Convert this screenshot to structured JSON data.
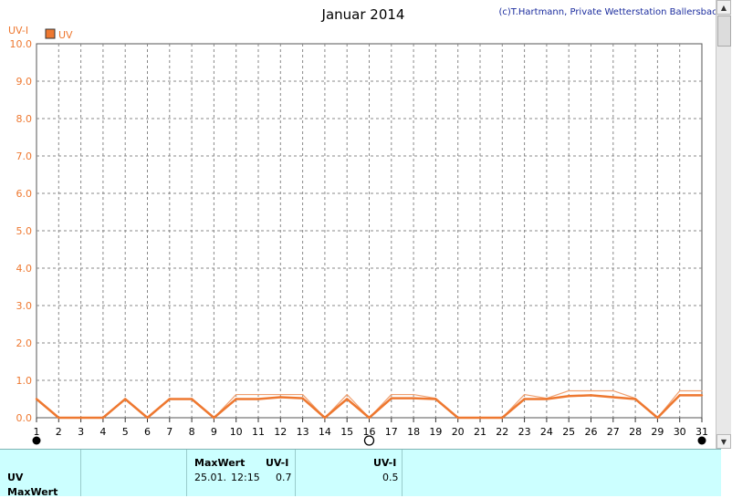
{
  "chart_data": {
    "type": "line",
    "title": "Januar 2014",
    "credit": "(c)T.Hartmann, Private Wetterstation Ballersbach",
    "ylabel": "UV-I",
    "legend": "UV",
    "legend_placement": "top-left",
    "grid": true,
    "ylim": [
      0,
      10
    ],
    "y_ticks": [
      "0.0",
      "1.0",
      "2.0",
      "3.0",
      "4.0",
      "5.0",
      "6.0",
      "7.0",
      "8.0",
      "9.0",
      "10.0"
    ],
    "x_ticks": [
      "1",
      "2",
      "3",
      "4",
      "5",
      "6",
      "7",
      "8",
      "9",
      "10",
      "11",
      "12",
      "13",
      "14",
      "15",
      "16",
      "17",
      "18",
      "19",
      "20",
      "21",
      "22",
      "23",
      "24",
      "25",
      "26",
      "27",
      "28",
      "29",
      "30",
      "31"
    ],
    "series": [
      {
        "name": "UV",
        "color": "#ee7830",
        "x": [
          1,
          2,
          3,
          4,
          5,
          6,
          7,
          8,
          9,
          10,
          11,
          12,
          13,
          14,
          15,
          16,
          17,
          18,
          19,
          20,
          21,
          22,
          23,
          24,
          25,
          26,
          27,
          28,
          29,
          30,
          31
        ],
        "values": [
          0.5,
          0.0,
          0.0,
          0.0,
          0.5,
          0.0,
          0.5,
          0.5,
          0.0,
          0.5,
          0.5,
          0.55,
          0.52,
          0.0,
          0.5,
          0.0,
          0.52,
          0.52,
          0.5,
          0.0,
          0.0,
          0.0,
          0.5,
          0.5,
          0.58,
          0.6,
          0.55,
          0.5,
          0.0,
          0.6,
          0.6
        ]
      },
      {
        "name": "MaxWert",
        "color": "#f0a070",
        "x": [
          1,
          2,
          3,
          4,
          5,
          6,
          7,
          8,
          9,
          10,
          11,
          12,
          13,
          14,
          15,
          16,
          17,
          18,
          19,
          20,
          21,
          22,
          23,
          24,
          25,
          26,
          27,
          28,
          29,
          30,
          31
        ],
        "values": [
          0.5,
          0.0,
          0.0,
          0.0,
          0.5,
          0.0,
          0.5,
          0.5,
          0.0,
          0.62,
          0.62,
          0.62,
          0.62,
          0.0,
          0.62,
          0.0,
          0.62,
          0.62,
          0.52,
          0.0,
          0.0,
          0.0,
          0.62,
          0.52,
          0.72,
          0.72,
          0.72,
          0.52,
          0.0,
          0.72,
          0.72
        ]
      }
    ],
    "moon_markers": [
      {
        "day": 1,
        "phase": "new"
      },
      {
        "day": 16,
        "phase": "full"
      },
      {
        "day": 31,
        "phase": "new"
      }
    ]
  },
  "table": {
    "row_label": "UV",
    "row_label2": "MaxWert",
    "col_maxwert": "MaxWert",
    "col_unit": "UV-I",
    "max_date": "25.01.",
    "max_time": "12:15",
    "max_value": "0.7",
    "col_unit2": "UV-I",
    "avg_value": "0.5"
  },
  "scrollbar": {
    "up_icon": "triangle-up-icon",
    "down_icon": "triangle-down-icon"
  }
}
